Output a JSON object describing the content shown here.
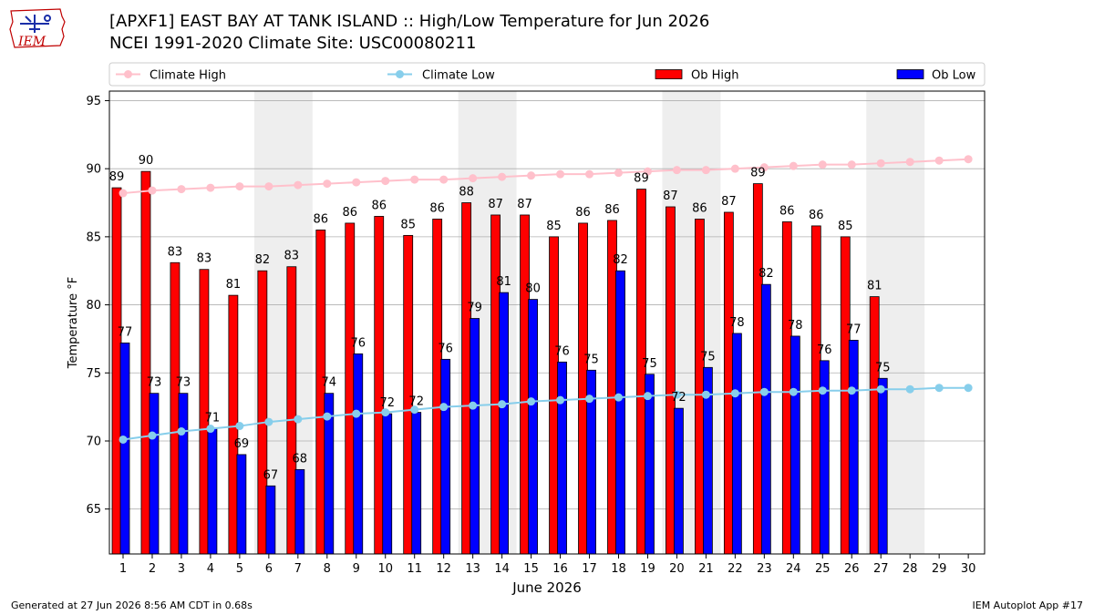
{
  "logo_text": "IEM",
  "title_line1": "[APXF1] EAST BAY AT TANK ISLAND :: High/Low Temperature for Jun 2026",
  "title_line2": "NCEI 1991-2020 Climate Site: USC00080211",
  "footer_left": "Generated at 27 Jun 2026 8:56 AM CDT in 0.68s",
  "footer_right": "IEM Autoplot App #17",
  "colors": {
    "ob_high": "#ff0000",
    "ob_low": "#0000ff",
    "climate_high": "#ffc0cb",
    "climate_low": "#87ceeb",
    "weekend_shade": "#eeeeee",
    "grid": "#b0b0b0",
    "logo": "#c00000"
  },
  "chart_data": {
    "type": "bar",
    "xlabel": "June 2026",
    "ylabel": "Temperature °F",
    "ylim": [
      61.7,
      95.7
    ],
    "yticks": [
      65,
      70,
      75,
      80,
      85,
      90,
      95
    ],
    "grid": true,
    "legend_position": "top",
    "days": [
      1,
      2,
      3,
      4,
      5,
      6,
      7,
      8,
      9,
      10,
      11,
      12,
      13,
      14,
      15,
      16,
      17,
      18,
      19,
      20,
      21,
      22,
      23,
      24,
      25,
      26,
      27,
      28,
      29,
      30
    ],
    "weekend_shading": [
      [
        6,
        7
      ],
      [
        13,
        14
      ],
      [
        20,
        21
      ],
      [
        27,
        28
      ]
    ],
    "series": [
      {
        "name": "Ob High",
        "kind": "bar",
        "values": [
          88.6,
          89.8,
          83.1,
          82.6,
          80.7,
          82.5,
          82.8,
          85.5,
          86.0,
          86.5,
          85.1,
          86.3,
          87.5,
          86.6,
          86.6,
          85.0,
          86.0,
          86.2,
          88.5,
          87.2,
          86.3,
          86.8,
          88.9,
          86.1,
          85.8,
          85.0,
          80.6
        ],
        "labels": [
          "89",
          "90",
          "83",
          "83",
          "81",
          "82",
          "83",
          "86",
          "86",
          "86",
          "85",
          "86",
          "88",
          "87",
          "87",
          "85",
          "86",
          "86",
          "89",
          "87",
          "86",
          "87",
          "89",
          "86",
          "86",
          "85",
          "81"
        ]
      },
      {
        "name": "Ob Low",
        "kind": "bar",
        "values": [
          77.2,
          73.5,
          73.5,
          70.9,
          69.0,
          66.7,
          67.9,
          73.5,
          76.4,
          72.0,
          72.1,
          76.0,
          79.0,
          80.9,
          80.4,
          75.8,
          75.2,
          82.5,
          74.9,
          72.4,
          75.4,
          77.9,
          81.5,
          77.7,
          75.9,
          77.4,
          74.6
        ],
        "labels": [
          "77",
          "73",
          "73",
          "71",
          "69",
          "67",
          "68",
          "74",
          "76",
          "72",
          "72",
          "76",
          "79",
          "81",
          "80",
          "76",
          "75",
          "82",
          "75",
          "72",
          "75",
          "78",
          "82",
          "78",
          "76",
          "77",
          "75"
        ]
      },
      {
        "name": "Climate High",
        "kind": "line",
        "values": [
          88.2,
          88.4,
          88.5,
          88.6,
          88.7,
          88.7,
          88.8,
          88.9,
          89.0,
          89.1,
          89.2,
          89.2,
          89.3,
          89.4,
          89.5,
          89.6,
          89.6,
          89.7,
          89.8,
          89.9,
          89.9,
          90.0,
          90.1,
          90.2,
          90.3,
          90.3,
          90.4,
          90.5,
          90.6,
          90.7
        ]
      },
      {
        "name": "Climate Low",
        "kind": "line",
        "values": [
          70.1,
          70.4,
          70.7,
          70.9,
          71.1,
          71.4,
          71.6,
          71.8,
          72.0,
          72.1,
          72.3,
          72.5,
          72.6,
          72.7,
          72.9,
          73.0,
          73.1,
          73.2,
          73.3,
          73.4,
          73.4,
          73.5,
          73.6,
          73.6,
          73.7,
          73.7,
          73.8,
          73.8,
          73.9,
          73.9
        ]
      }
    ]
  }
}
